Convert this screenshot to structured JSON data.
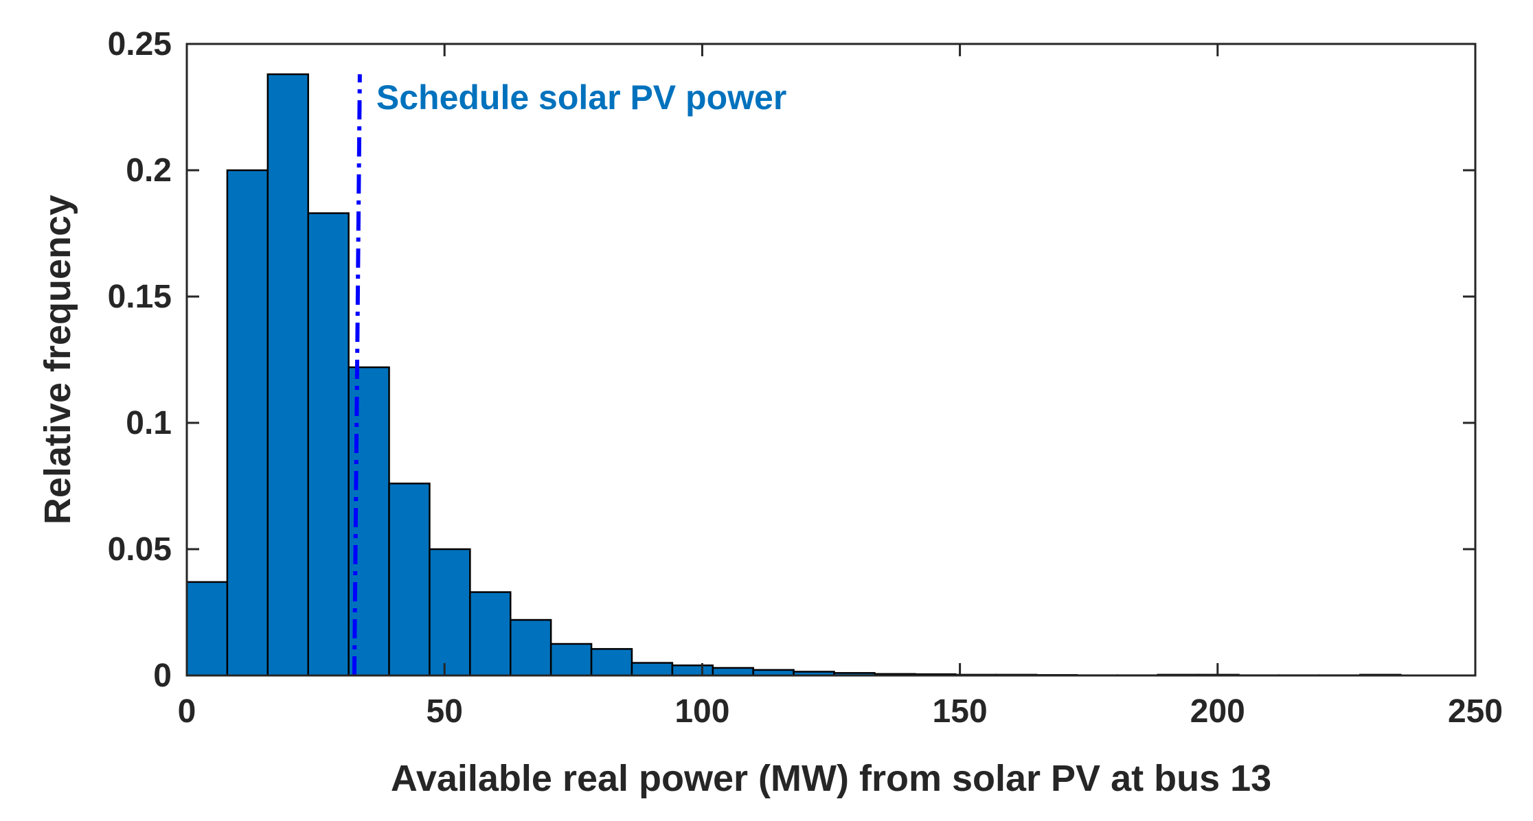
{
  "chart_data": {
    "type": "bar",
    "title": "",
    "xlabel": "Available real power (MW) from solar PV at bus 13",
    "ylabel": "Relative frequency",
    "xlim": [
      0,
      250
    ],
    "ylim": [
      0,
      0.25
    ],
    "xticks": [
      0,
      50,
      100,
      150,
      200,
      250
    ],
    "xtick_labels": [
      "0",
      "50",
      "100",
      "150",
      "200",
      "250"
    ],
    "yticks": [
      0,
      0.05,
      0.1,
      0.15,
      0.2,
      0.25
    ],
    "ytick_labels": [
      "0",
      "0.05",
      "0.1",
      "0.15",
      "0.2",
      "0.25"
    ],
    "grid": false,
    "bin_width": 7.85,
    "bins": [
      {
        "start": 0.0,
        "value": 0.037
      },
      {
        "start": 7.85,
        "value": 0.2
      },
      {
        "start": 15.7,
        "value": 0.238
      },
      {
        "start": 23.55,
        "value": 0.183
      },
      {
        "start": 31.4,
        "value": 0.122
      },
      {
        "start": 39.25,
        "value": 0.076
      },
      {
        "start": 47.1,
        "value": 0.05
      },
      {
        "start": 54.95,
        "value": 0.033
      },
      {
        "start": 62.8,
        "value": 0.022
      },
      {
        "start": 70.65,
        "value": 0.0125
      },
      {
        "start": 78.5,
        "value": 0.0105
      },
      {
        "start": 86.35,
        "value": 0.005
      },
      {
        "start": 94.2,
        "value": 0.004
      },
      {
        "start": 102.05,
        "value": 0.003
      },
      {
        "start": 109.9,
        "value": 0.0022
      },
      {
        "start": 117.75,
        "value": 0.0015
      },
      {
        "start": 125.6,
        "value": 0.001
      },
      {
        "start": 133.45,
        "value": 0.0006
      },
      {
        "start": 141.3,
        "value": 0.0005
      },
      {
        "start": 149.15,
        "value": 0.0003
      },
      {
        "start": 157.0,
        "value": 0.0003
      },
      {
        "start": 164.85,
        "value": 0.0002
      },
      {
        "start": 172.7,
        "value": 0.0001
      },
      {
        "start": 180.55,
        "value": 0.0001
      },
      {
        "start": 188.4,
        "value": 0.0003
      },
      {
        "start": 196.25,
        "value": 0.0003
      },
      {
        "start": 204.1,
        "value": 0.0001
      },
      {
        "start": 211.95,
        "value": 0.0001
      },
      {
        "start": 219.8,
        "value": 0.0001
      },
      {
        "start": 227.65,
        "value": 0.0003
      }
    ],
    "bar_color": "#0072BD",
    "bar_edge_color": "#000000",
    "reference_line": {
      "label": "Schedule solar PV power",
      "x": 32.5,
      "style": "dash-dot",
      "color": "#0000FF",
      "label_color": "#0072BD"
    }
  }
}
